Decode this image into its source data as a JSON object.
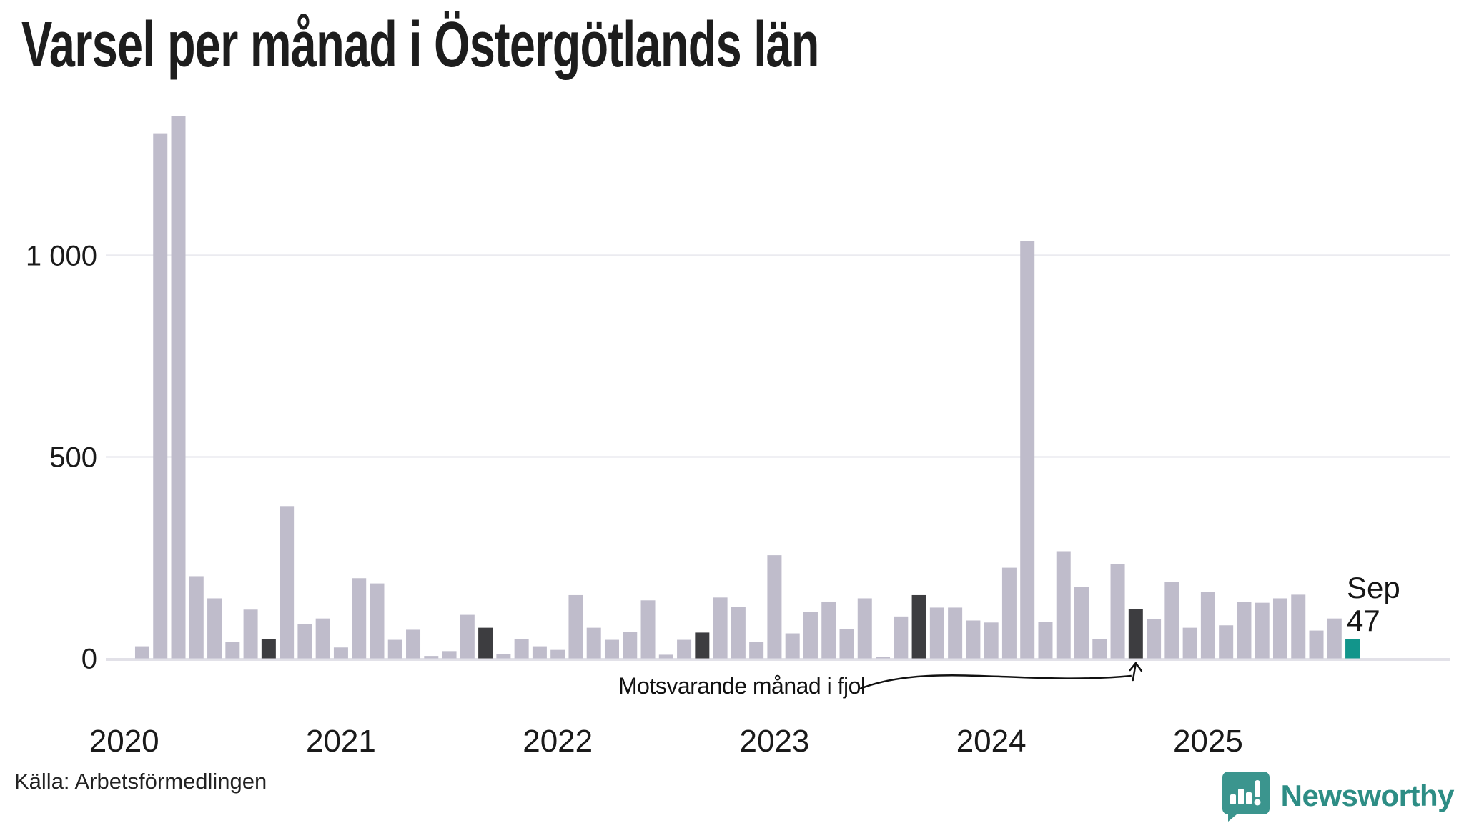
{
  "title": "Varsel per månad i Östergötlands län",
  "source": "Källa: Arbetsförmedlingen",
  "brand": {
    "name": "Newsworthy"
  },
  "annotation": {
    "text": "Motsvarande månad i fjol"
  },
  "current_label": {
    "month": "Sep",
    "value": "47"
  },
  "colors": {
    "bar": "#bfbccb",
    "bar_prev_year": "#3d3d40",
    "bar_current": "#12958b",
    "grid": "#ebebf0",
    "baseline": "#e2e1e8",
    "axis_text": "#1a1a1a",
    "annotation_line": "#111111",
    "brand_icon": "#3b958e",
    "brand_text": "#2d8d85"
  },
  "chart_data": {
    "type": "bar",
    "title": "Varsel per månad i Östergötlands län",
    "xlabel": "",
    "ylabel": "",
    "ylim": [
      0,
      1400
    ],
    "grid": true,
    "y_ticks": [
      {
        "value": 0,
        "label": "0"
      },
      {
        "value": 500,
        "label": "500"
      },
      {
        "value": 1000,
        "label": "1 000"
      }
    ],
    "year_labels": [
      "2020",
      "2021",
      "2022",
      "2023",
      "2024",
      "2025"
    ],
    "annotation_target": "2024-09",
    "months": [
      {
        "ym": "2020-02",
        "value": 30,
        "kind": "normal"
      },
      {
        "ym": "2020-03",
        "value": 1303,
        "kind": "normal"
      },
      {
        "ym": "2020-04",
        "value": 1346,
        "kind": "normal"
      },
      {
        "ym": "2020-05",
        "value": 204,
        "kind": "normal"
      },
      {
        "ym": "2020-06",
        "value": 149,
        "kind": "normal"
      },
      {
        "ym": "2020-07",
        "value": 41,
        "kind": "normal"
      },
      {
        "ym": "2020-08",
        "value": 121,
        "kind": "normal"
      },
      {
        "ym": "2020-09",
        "value": 48,
        "kind": "prev-year"
      },
      {
        "ym": "2020-10",
        "value": 378,
        "kind": "normal"
      },
      {
        "ym": "2020-11",
        "value": 85,
        "kind": "normal"
      },
      {
        "ym": "2020-12",
        "value": 99,
        "kind": "normal"
      },
      {
        "ym": "2021-01",
        "value": 27,
        "kind": "normal"
      },
      {
        "ym": "2021-02",
        "value": 199,
        "kind": "normal"
      },
      {
        "ym": "2021-03",
        "value": 186,
        "kind": "normal"
      },
      {
        "ym": "2021-04",
        "value": 46,
        "kind": "normal"
      },
      {
        "ym": "2021-05",
        "value": 71,
        "kind": "normal"
      },
      {
        "ym": "2021-06",
        "value": 6,
        "kind": "normal"
      },
      {
        "ym": "2021-07",
        "value": 18,
        "kind": "normal"
      },
      {
        "ym": "2021-08",
        "value": 108,
        "kind": "normal"
      },
      {
        "ym": "2021-09",
        "value": 76,
        "kind": "prev-year"
      },
      {
        "ym": "2021-10",
        "value": 10,
        "kind": "normal"
      },
      {
        "ym": "2021-11",
        "value": 48,
        "kind": "normal"
      },
      {
        "ym": "2021-12",
        "value": 30,
        "kind": "normal"
      },
      {
        "ym": "2022-01",
        "value": 21,
        "kind": "normal"
      },
      {
        "ym": "2022-02",
        "value": 157,
        "kind": "normal"
      },
      {
        "ym": "2022-03",
        "value": 76,
        "kind": "normal"
      },
      {
        "ym": "2022-04",
        "value": 46,
        "kind": "normal"
      },
      {
        "ym": "2022-05",
        "value": 66,
        "kind": "normal"
      },
      {
        "ym": "2022-06",
        "value": 144,
        "kind": "normal"
      },
      {
        "ym": "2022-07",
        "value": 9,
        "kind": "normal"
      },
      {
        "ym": "2022-08",
        "value": 46,
        "kind": "normal"
      },
      {
        "ym": "2022-09",
        "value": 64,
        "kind": "prev-year"
      },
      {
        "ym": "2022-10",
        "value": 151,
        "kind": "normal"
      },
      {
        "ym": "2022-11",
        "value": 127,
        "kind": "normal"
      },
      {
        "ym": "2022-12",
        "value": 41,
        "kind": "normal"
      },
      {
        "ym": "2023-01",
        "value": 256,
        "kind": "normal"
      },
      {
        "ym": "2023-02",
        "value": 62,
        "kind": "normal"
      },
      {
        "ym": "2023-03",
        "value": 115,
        "kind": "normal"
      },
      {
        "ym": "2023-04",
        "value": 141,
        "kind": "normal"
      },
      {
        "ym": "2023-05",
        "value": 73,
        "kind": "normal"
      },
      {
        "ym": "2023-06",
        "value": 149,
        "kind": "normal"
      },
      {
        "ym": "2023-07",
        "value": 3,
        "kind": "normal"
      },
      {
        "ym": "2023-08",
        "value": 104,
        "kind": "normal"
      },
      {
        "ym": "2023-09",
        "value": 157,
        "kind": "prev-year"
      },
      {
        "ym": "2023-10",
        "value": 126,
        "kind": "normal"
      },
      {
        "ym": "2023-11",
        "value": 126,
        "kind": "normal"
      },
      {
        "ym": "2023-12",
        "value": 94,
        "kind": "normal"
      },
      {
        "ym": "2024-01",
        "value": 89,
        "kind": "normal"
      },
      {
        "ym": "2024-02",
        "value": 225,
        "kind": "normal"
      },
      {
        "ym": "2024-03",
        "value": 1035,
        "kind": "normal"
      },
      {
        "ym": "2024-04",
        "value": 90,
        "kind": "normal"
      },
      {
        "ym": "2024-05",
        "value": 266,
        "kind": "normal"
      },
      {
        "ym": "2024-06",
        "value": 177,
        "kind": "normal"
      },
      {
        "ym": "2024-07",
        "value": 48,
        "kind": "normal"
      },
      {
        "ym": "2024-08",
        "value": 234,
        "kind": "normal"
      },
      {
        "ym": "2024-09",
        "value": 123,
        "kind": "prev-year"
      },
      {
        "ym": "2024-10",
        "value": 97,
        "kind": "normal"
      },
      {
        "ym": "2024-11",
        "value": 190,
        "kind": "normal"
      },
      {
        "ym": "2024-12",
        "value": 76,
        "kind": "normal"
      },
      {
        "ym": "2025-01",
        "value": 165,
        "kind": "normal"
      },
      {
        "ym": "2025-02",
        "value": 82,
        "kind": "normal"
      },
      {
        "ym": "2025-03",
        "value": 140,
        "kind": "normal"
      },
      {
        "ym": "2025-04",
        "value": 138,
        "kind": "normal"
      },
      {
        "ym": "2025-05",
        "value": 149,
        "kind": "normal"
      },
      {
        "ym": "2025-06",
        "value": 158,
        "kind": "normal"
      },
      {
        "ym": "2025-07",
        "value": 69,
        "kind": "normal"
      },
      {
        "ym": "2025-08",
        "value": 99,
        "kind": "normal"
      },
      {
        "ym": "2025-09",
        "value": 47,
        "kind": "current"
      }
    ]
  }
}
